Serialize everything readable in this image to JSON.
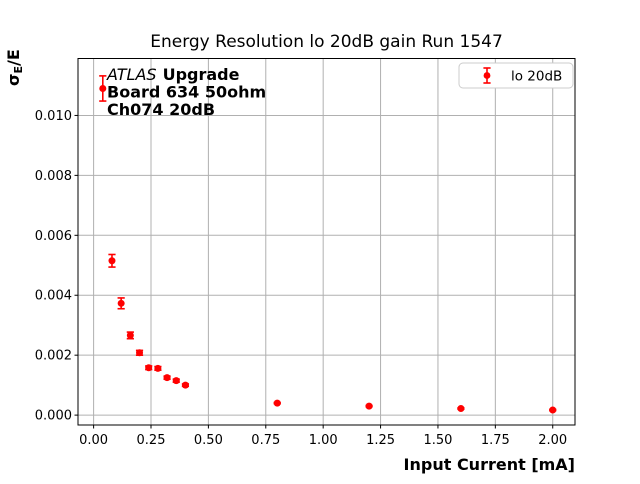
{
  "chart_data": {
    "type": "scatter",
    "title": "Energy Resolution lo 20dB gain Run 1547",
    "xlabel": "Input Current [mA]",
    "ylabel": "σE/E",
    "ylabel_parts": {
      "base": "σ",
      "sub": "E",
      "rest": "/E"
    },
    "grid": true,
    "legend": {
      "label": "lo 20dB",
      "position": "upper right"
    },
    "annotation": {
      "line1_italic": "ATLAS",
      "line1_bold": "Upgrade",
      "line2": "Board 634 50ohm",
      "line3": "Ch074 20dB"
    },
    "colors": {
      "series": "#ff0000",
      "grid": "#b0b0b0",
      "frame": "#000000",
      "legend_border": "#cccccc"
    },
    "xlim": [
      -0.068,
      2.097
    ],
    "ylim": [
      -0.00033,
      0.0119
    ],
    "xticks": [
      0.0,
      0.25,
      0.5,
      0.75,
      1.0,
      1.25,
      1.5,
      1.75,
      2.0
    ],
    "xtick_labels": [
      "0.00",
      "0.25",
      "0.50",
      "0.75",
      "1.00",
      "1.25",
      "1.50",
      "1.75",
      "2.00"
    ],
    "yticks": [
      0.0,
      0.002,
      0.004,
      0.006,
      0.008,
      0.01
    ],
    "ytick_labels": [
      "0.000",
      "0.002",
      "0.004",
      "0.006",
      "0.008",
      "0.010"
    ],
    "series": [
      {
        "name": "lo 20dB",
        "color": "#ff0000",
        "marker": "circle",
        "x": [
          0.04,
          0.08,
          0.12,
          0.16,
          0.2,
          0.24,
          0.28,
          0.32,
          0.36,
          0.4,
          0.8,
          1.2,
          1.6,
          2.0
        ],
        "y": [
          0.0109,
          0.00515,
          0.00373,
          0.00266,
          0.00208,
          0.00158,
          0.00156,
          0.00125,
          0.00115,
          0.001,
          0.0004,
          0.0003,
          0.00022,
          0.00017
        ],
        "yerr": [
          0.00042,
          0.00021,
          0.00018,
          0.00011,
          8e-05,
          6e-05,
          6e-05,
          5e-05,
          5e-05,
          4e-05,
          2e-05,
          2e-05,
          2e-05,
          2e-05
        ]
      }
    ]
  }
}
